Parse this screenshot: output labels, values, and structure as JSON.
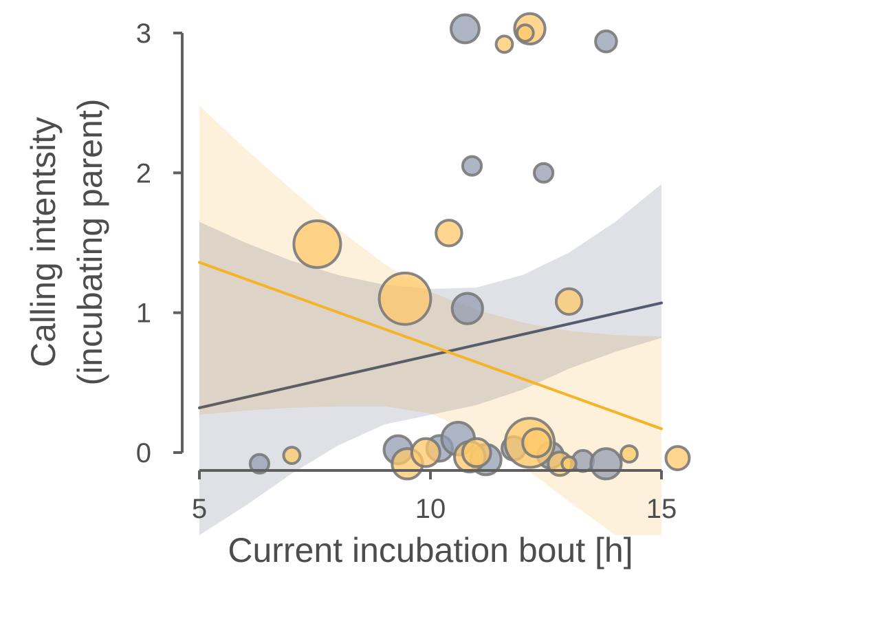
{
  "chart_data": {
    "type": "scatter",
    "title": "",
    "xlabel": "Current incubation bout [h]",
    "ylabel_lines": [
      "Calling intentsity",
      "(incubating parent)"
    ],
    "xlim": [
      5,
      15
    ],
    "ylim": [
      0,
      3
    ],
    "x_ticks": [
      5,
      10,
      15
    ],
    "x_tick_labels": [
      "5",
      "10",
      "15"
    ],
    "y_ticks": [
      0,
      1,
      2,
      3
    ],
    "y_tick_labels": [
      "0",
      "1",
      "2",
      "3"
    ],
    "grid": false,
    "legend": "none",
    "colors": {
      "axis": "#5f5f5f",
      "point_edge": "#7a7a7a",
      "group_a_point": "#939cb2",
      "group_b_point": "#fdc86a",
      "group_a_line": "#535a72",
      "group_a_line_left": "#5f5f5f",
      "group_b_line": "#f5b428",
      "group_a_band": "#dfe1e7",
      "group_b_band": "#fdefd6"
    },
    "series": [
      {
        "group": "a",
        "fit": {
          "x": [
            5,
            15
          ],
          "y": [
            0.32,
            1.07
          ]
        },
        "ci_band": {
          "x": [
            5,
            6,
            7,
            8,
            9,
            10,
            11,
            12,
            13,
            14,
            15
          ],
          "upper": [
            1.65,
            1.5,
            1.37,
            1.27,
            1.2,
            1.17,
            1.18,
            1.27,
            1.43,
            1.65,
            1.92
          ],
          "lower": [
            -0.6,
            -0.38,
            -0.15,
            0.05,
            0.2,
            0.27,
            0.34,
            0.45,
            0.6,
            0.72,
            0.82
          ]
        },
        "points": [
          {
            "x": 10.75,
            "y": 3.03,
            "size": 1.2
          },
          {
            "x": 13.8,
            "y": 2.94,
            "size": 0.9
          },
          {
            "x": 10.9,
            "y": 2.05,
            "size": 0.8
          },
          {
            "x": 12.45,
            "y": 2.0,
            "size": 0.8
          },
          {
            "x": 10.8,
            "y": 1.03,
            "size": 1.3
          },
          {
            "x": 6.3,
            "y": -0.08,
            "size": 0.8
          },
          {
            "x": 9.3,
            "y": 0.02,
            "size": 1.2
          },
          {
            "x": 10.2,
            "y": 0.03,
            "size": 1.1
          },
          {
            "x": 10.6,
            "y": 0.1,
            "size": 1.4
          },
          {
            "x": 11.2,
            "y": -0.05,
            "size": 1.3
          },
          {
            "x": 11.8,
            "y": 0.03,
            "size": 1.0
          },
          {
            "x": 12.6,
            "y": -0.02,
            "size": 1.1
          },
          {
            "x": 13.3,
            "y": -0.06,
            "size": 0.9
          },
          {
            "x": 13.8,
            "y": -0.08,
            "size": 1.3
          }
        ]
      },
      {
        "group": "b",
        "fit": {
          "x": [
            5,
            15
          ],
          "y": [
            1.36,
            0.17
          ]
        },
        "ci_band": {
          "x": [
            5,
            6,
            7,
            8,
            9,
            10,
            11,
            12,
            13,
            14,
            15
          ],
          "upper": [
            2.48,
            2.17,
            1.88,
            1.6,
            1.35,
            1.15,
            1.02,
            0.93,
            0.87,
            0.84,
            0.83
          ],
          "lower": [
            0.27,
            0.3,
            0.32,
            0.33,
            0.33,
            0.28,
            0.13,
            -0.1,
            -0.35,
            -0.62,
            -0.9
          ]
        },
        "points": [
          {
            "x": 12.15,
            "y": 3.03,
            "size": 1.3
          },
          {
            "x": 12.05,
            "y": 3.0,
            "size": 0.7
          },
          {
            "x": 11.6,
            "y": 2.92,
            "size": 0.7
          },
          {
            "x": 10.4,
            "y": 1.57,
            "size": 1.1
          },
          {
            "x": 7.55,
            "y": 1.49,
            "size": 2.0
          },
          {
            "x": 9.45,
            "y": 1.1,
            "size": 2.2
          },
          {
            "x": 13.0,
            "y": 1.08,
            "size": 1.1
          },
          {
            "x": 7.0,
            "y": -0.02,
            "size": 0.7
          },
          {
            "x": 9.5,
            "y": -0.08,
            "size": 1.3
          },
          {
            "x": 9.9,
            "y": 0.0,
            "size": 1.2
          },
          {
            "x": 10.85,
            "y": -0.03,
            "size": 1.3
          },
          {
            "x": 11.0,
            "y": 0.0,
            "size": 1.2
          },
          {
            "x": 12.15,
            "y": 0.07,
            "size": 2.1
          },
          {
            "x": 12.3,
            "y": 0.07,
            "size": 1.2
          },
          {
            "x": 12.8,
            "y": -0.08,
            "size": 1.0
          },
          {
            "x": 13.0,
            "y": -0.08,
            "size": 0.6
          },
          {
            "x": 14.3,
            "y": -0.01,
            "size": 0.7
          },
          {
            "x": 15.35,
            "y": -0.04,
            "size": 1.0
          }
        ]
      }
    ]
  }
}
